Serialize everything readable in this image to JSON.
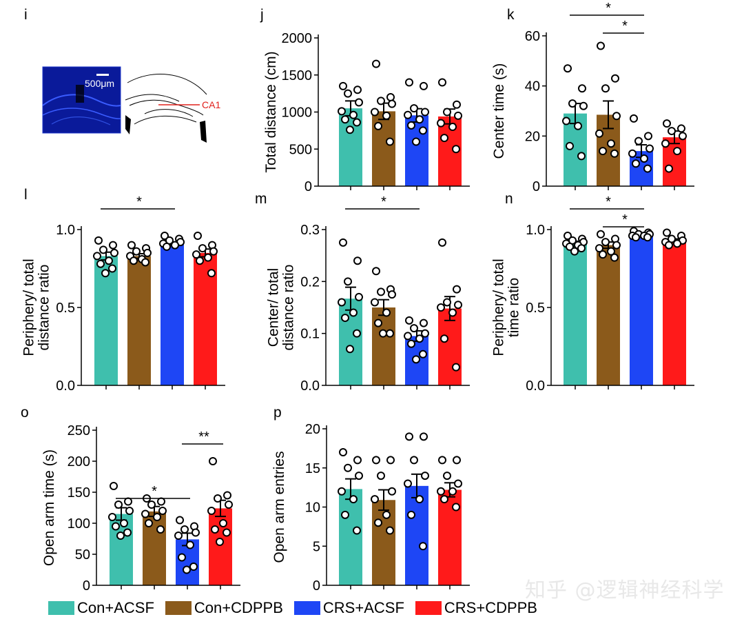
{
  "panel_labels": [
    "i",
    "j",
    "k",
    "l",
    "m",
    "n",
    "o",
    "p"
  ],
  "groups": [
    {
      "name": "Con+ACSF",
      "color": "#3fbfad"
    },
    {
      "name": "Con+CDPPB",
      "color": "#8b5a1b"
    },
    {
      "name": "CRS+ACSF",
      "color": "#1e46f5"
    },
    {
      "name": "CRS+CDPPB",
      "color": "#ff1a1a"
    }
  ],
  "histology": {
    "scale_label": "500μm",
    "region_label": "CA1",
    "region_color": "#e0201c",
    "stain_color": "#0a1a9a"
  },
  "watermark": "知乎 @逻辑神经科学",
  "chart_data": [
    {
      "panel": "j",
      "type": "bar",
      "categories": [
        "Con+ACSF",
        "Con+CDPPB",
        "CRS+ACSF",
        "CRS+CDPPB"
      ],
      "values": [
        1050,
        1010,
        955,
        940
      ],
      "errors": [
        100,
        110,
        90,
        100
      ],
      "points": [
        [
          1350,
          1300,
          1250,
          1130,
          1010,
          960,
          900,
          860,
          760
        ],
        [
          1650,
          1200,
          1150,
          1110,
          1000,
          950,
          810,
          600
        ],
        [
          1400,
          1350,
          1050,
          1000,
          960,
          900,
          820,
          750,
          600
        ],
        [
          1400,
          1100,
          1000,
          950,
          850,
          800,
          650,
          500
        ]
      ],
      "ylabel": "Total distance (cm)",
      "ylim": [
        0,
        2000
      ],
      "yticks": [
        "0",
        "500",
        "1000",
        "1500",
        "2000"
      ],
      "sig": []
    },
    {
      "panel": "k",
      "type": "bar",
      "categories": [
        "Con+ACSF",
        "Con+CDPPB",
        "CRS+ACSF",
        "CRS+CDPPB"
      ],
      "values": [
        29,
        28.5,
        14,
        19.5
      ],
      "errors": [
        4,
        5.5,
        2.5,
        2.5
      ],
      "points": [
        [
          47,
          39,
          33,
          32,
          26,
          24,
          16,
          12
        ],
        [
          56,
          43,
          39,
          28,
          21,
          17,
          14,
          13
        ],
        [
          27,
          20,
          18,
          15,
          13,
          11,
          9,
          7
        ],
        [
          25,
          23,
          22,
          20,
          17,
          14,
          7
        ]
      ],
      "ylabel": "Center time (s)",
      "ylim": [
        0,
        60
      ],
      "yticks": [
        "0",
        "20",
        "40",
        "60"
      ],
      "sig": [
        {
          "from": 0,
          "to": 2,
          "text": "*"
        },
        {
          "from": 1,
          "to": 2,
          "text": "*"
        }
      ]
    },
    {
      "panel": "l",
      "type": "bar",
      "categories": [
        "Con+ACSF",
        "Con+CDPPB",
        "CRS+ACSF",
        "CRS+CDPPB"
      ],
      "values": [
        0.83,
        0.83,
        0.91,
        0.85
      ],
      "errors": [
        0.025,
        0.015,
        0.01,
        0.025
      ],
      "points": [
        [
          0.93,
          0.9,
          0.87,
          0.85,
          0.83,
          0.8,
          0.78,
          0.75,
          0.72
        ],
        [
          0.9,
          0.88,
          0.86,
          0.85,
          0.83,
          0.81,
          0.8,
          0.79
        ],
        [
          0.96,
          0.94,
          0.93,
          0.92,
          0.91,
          0.9,
          0.89
        ],
        [
          0.96,
          0.9,
          0.88,
          0.86,
          0.84,
          0.82,
          0.8,
          0.72
        ]
      ],
      "ylabel": "Periphery/ total distance ratio",
      "ylim": [
        0,
        1.0
      ],
      "yticks": [
        "0.0",
        "0.5",
        "1.0"
      ],
      "sig": [
        {
          "from": 0,
          "to": 2,
          "text": "*"
        }
      ]
    },
    {
      "panel": "m",
      "type": "bar",
      "categories": [
        "Con+ACSF",
        "Con+CDPPB",
        "CRS+ACSF",
        "CRS+CDPPB"
      ],
      "values": [
        0.167,
        0.15,
        0.095,
        0.148
      ],
      "errors": [
        0.022,
        0.015,
        0.01,
        0.023
      ],
      "points": [
        [
          0.275,
          0.24,
          0.2,
          0.17,
          0.16,
          0.14,
          0.13,
          0.1,
          0.07
        ],
        [
          0.22,
          0.185,
          0.18,
          0.175,
          0.16,
          0.14,
          0.12,
          0.1,
          0.1
        ],
        [
          0.125,
          0.12,
          0.11,
          0.1,
          0.095,
          0.09,
          0.08,
          0.06,
          0.05
        ],
        [
          0.275,
          0.185,
          0.16,
          0.155,
          0.15,
          0.14,
          0.09,
          0.035
        ]
      ],
      "ylabel": "Center/ total distance ratio",
      "ylim": [
        0,
        0.3
      ],
      "yticks": [
        "0.0",
        "0.1",
        "0.2",
        "0.3"
      ],
      "sig": [
        {
          "from": 0,
          "to": 2,
          "text": "*"
        }
      ]
    },
    {
      "panel": "n",
      "type": "bar",
      "categories": [
        "Con+ACSF",
        "Con+CDPPB",
        "CRS+ACSF",
        "CRS+CDPPB"
      ],
      "values": [
        0.91,
        0.9,
        0.965,
        0.93
      ],
      "errors": [
        0.015,
        0.02,
        0.008,
        0.01
      ],
      "points": [
        [
          0.96,
          0.94,
          0.93,
          0.92,
          0.91,
          0.9,
          0.89,
          0.88,
          0.86
        ],
        [
          0.97,
          0.94,
          0.92,
          0.9,
          0.88,
          0.86,
          0.84,
          0.82
        ],
        [
          0.99,
          0.98,
          0.97,
          0.97,
          0.96,
          0.96,
          0.95,
          0.95
        ],
        [
          0.98,
          0.96,
          0.94,
          0.93,
          0.92,
          0.91,
          0.9
        ]
      ],
      "ylabel": "Periphery/ total time ratio",
      "ylim": [
        0,
        1.0
      ],
      "yticks": [
        "0.0",
        "0.5",
        "1.0"
      ],
      "sig": [
        {
          "from": 0,
          "to": 2,
          "text": "*"
        },
        {
          "from": 1,
          "to": 2,
          "text": "*"
        }
      ]
    },
    {
      "panel": "o",
      "type": "bar",
      "categories": [
        "Con+ACSF",
        "Con+CDPPB",
        "CRS+ACSF",
        "CRS+CDPPB"
      ],
      "values": [
        115,
        119,
        74,
        124
      ],
      "errors": [
        10,
        8,
        10,
        13
      ],
      "points": [
        [
          160,
          135,
          130,
          120,
          110,
          100,
          95,
          85,
          80
        ],
        [
          140,
          135,
          130,
          120,
          115,
          110,
          100,
          90
        ],
        [
          105,
          95,
          90,
          85,
          80,
          65,
          45,
          30,
          25
        ],
        [
          200,
          145,
          140,
          130,
          120,
          100,
          90,
          85,
          70
        ]
      ],
      "ylabel": "Open arm time (s)",
      "ylim": [
        0,
        250
      ],
      "yticks": [
        "0",
        "50",
        "100",
        "150",
        "200",
        "250"
      ],
      "sig": [
        {
          "from": 0,
          "to": 2,
          "text": "*"
        },
        {
          "from": 2,
          "to": 3,
          "text": "**"
        }
      ]
    },
    {
      "panel": "p",
      "type": "bar",
      "categories": [
        "Con+ACSF",
        "Con+CDPPB",
        "CRS+ACSF",
        "CRS+CDPPB"
      ],
      "values": [
        12.3,
        10.9,
        12.7,
        12.2
      ],
      "errors": [
        1.3,
        1.3,
        1.5,
        0.9
      ],
      "points": [
        [
          17,
          16,
          15,
          14,
          12,
          11,
          9,
          7
        ],
        [
          16,
          16,
          14,
          12,
          11,
          9,
          8,
          7
        ],
        [
          19,
          19,
          16,
          14,
          13,
          11,
          9,
          5
        ],
        [
          16,
          16,
          14,
          13,
          12,
          12,
          11,
          10
        ]
      ],
      "ylabel": "Open arm entries",
      "ylim": [
        0,
        20
      ],
      "yticks": [
        "0",
        "5",
        "10",
        "15",
        "20"
      ],
      "sig": []
    }
  ]
}
